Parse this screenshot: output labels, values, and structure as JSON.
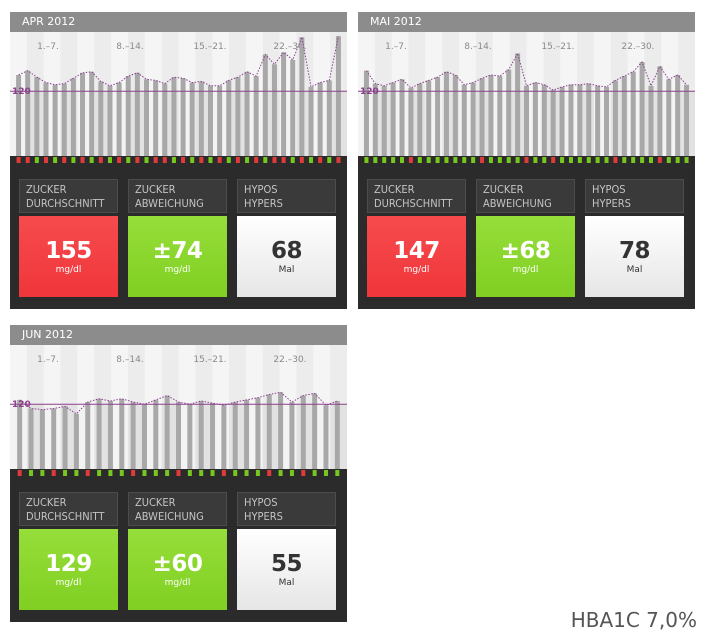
{
  "tiles_labels": {
    "mean": [
      "ZUCKER",
      "DURCHSCHNITT"
    ],
    "dev": [
      "ZUCKER",
      "ABWEICHUNG"
    ],
    "hypo": [
      "HYPOS",
      "HYPERS"
    ]
  },
  "colors": {
    "red": "#f0363a",
    "green": "#80cf22",
    "target_line": "#8b3f8d",
    "hypo_marker": "#e03a3a",
    "ok_marker": "#78c71e"
  },
  "panels": [
    {
      "id": "apr",
      "month": "APR 2012",
      "ticks": [
        "1.–7.",
        "8.–14.",
        "15.–21.",
        "22.–30."
      ],
      "target_value": "120",
      "chart_data": {
        "type": "bar",
        "ylim": [
          0,
          300
        ],
        "target": 120,
        "values": [
          150,
          158,
          146,
          136,
          132,
          134,
          144,
          154,
          156,
          138,
          130,
          136,
          148,
          154,
          142,
          140,
          134,
          146,
          144,
          136,
          138,
          130,
          130,
          140,
          146,
          156,
          148,
          188,
          170,
          192,
          178,
          220,
          128,
          136,
          140,
          222
        ],
        "markers": [
          "red",
          "red",
          "green",
          "red",
          "green",
          "red",
          "green",
          "red",
          "green",
          "red",
          "green",
          "red",
          "green",
          "red",
          "green",
          "red",
          "red",
          "green",
          "red",
          "green",
          "red",
          "green",
          "red",
          "green",
          "red",
          "green",
          "red",
          "green",
          "red",
          "red",
          "green",
          "red",
          "green",
          "red",
          "green",
          "red"
        ]
      },
      "tiles": [
        {
          "value": "155",
          "unit": "mg/dl",
          "color": "red"
        },
        {
          "value": "±74",
          "unit": "mg/dl",
          "color": "green"
        },
        {
          "value": "68",
          "unit": "Mal",
          "color": "white"
        }
      ]
    },
    {
      "id": "mai",
      "month": "MAI 2012",
      "ticks": [
        "1.–7.",
        "8.–14.",
        "15.–21.",
        "22.–30."
      ],
      "target_value": "120",
      "chart_data": {
        "type": "bar",
        "ylim": [
          0,
          300
        ],
        "target": 120,
        "values": [
          158,
          134,
          130,
          136,
          142,
          126,
          134,
          140,
          146,
          156,
          150,
          132,
          136,
          144,
          150,
          148,
          160,
          190,
          130,
          136,
          132,
          122,
          128,
          132,
          132,
          134,
          130,
          128,
          140,
          148,
          156,
          174,
          130,
          166,
          142,
          150,
          132
        ],
        "markers": [
          "green",
          "green",
          "green",
          "green",
          "green",
          "red",
          "green",
          "green",
          "green",
          "green",
          "green",
          "green",
          "green",
          "red",
          "green",
          "green",
          "green",
          "green",
          "red",
          "green",
          "green",
          "red",
          "green",
          "green",
          "green",
          "green",
          "green",
          "green",
          "red",
          "green",
          "green",
          "green",
          "green",
          "red",
          "green",
          "green",
          "green"
        ]
      },
      "tiles": [
        {
          "value": "147",
          "unit": "mg/dl",
          "color": "red"
        },
        {
          "value": "±68",
          "unit": "mg/dl",
          "color": "green"
        },
        {
          "value": "78",
          "unit": "Mal",
          "color": "white"
        }
      ]
    },
    {
      "id": "jun",
      "month": "JUN 2012",
      "ticks": [
        "1.–7.",
        "8.–14.",
        "15.–21.",
        "22.–30."
      ],
      "target_value": "120",
      "chart_data": {
        "type": "bar",
        "ylim": [
          0,
          300
        ],
        "target": 120,
        "values": [
          128,
          112,
          110,
          112,
          116,
          102,
          124,
          130,
          126,
          130,
          124,
          120,
          128,
          136,
          124,
          120,
          126,
          122,
          118,
          124,
          128,
          132,
          138,
          142,
          124,
          136,
          140,
          118,
          126
        ],
        "markers": [
          "red",
          "green",
          "green",
          "red",
          "green",
          "green",
          "red",
          "green",
          "green",
          "green",
          "red",
          "green",
          "green",
          "green",
          "red",
          "green",
          "green",
          "green",
          "red",
          "green",
          "green",
          "green",
          "red",
          "green",
          "green",
          "red",
          "green",
          "green",
          "green"
        ]
      },
      "tiles": [
        {
          "value": "129",
          "unit": "mg/dl",
          "color": "green"
        },
        {
          "value": "±60",
          "unit": "mg/dl",
          "color": "green"
        },
        {
          "value": "55",
          "unit": "Mal",
          "color": "white"
        }
      ]
    }
  ],
  "hba1c": "HBA1C 7,0%"
}
